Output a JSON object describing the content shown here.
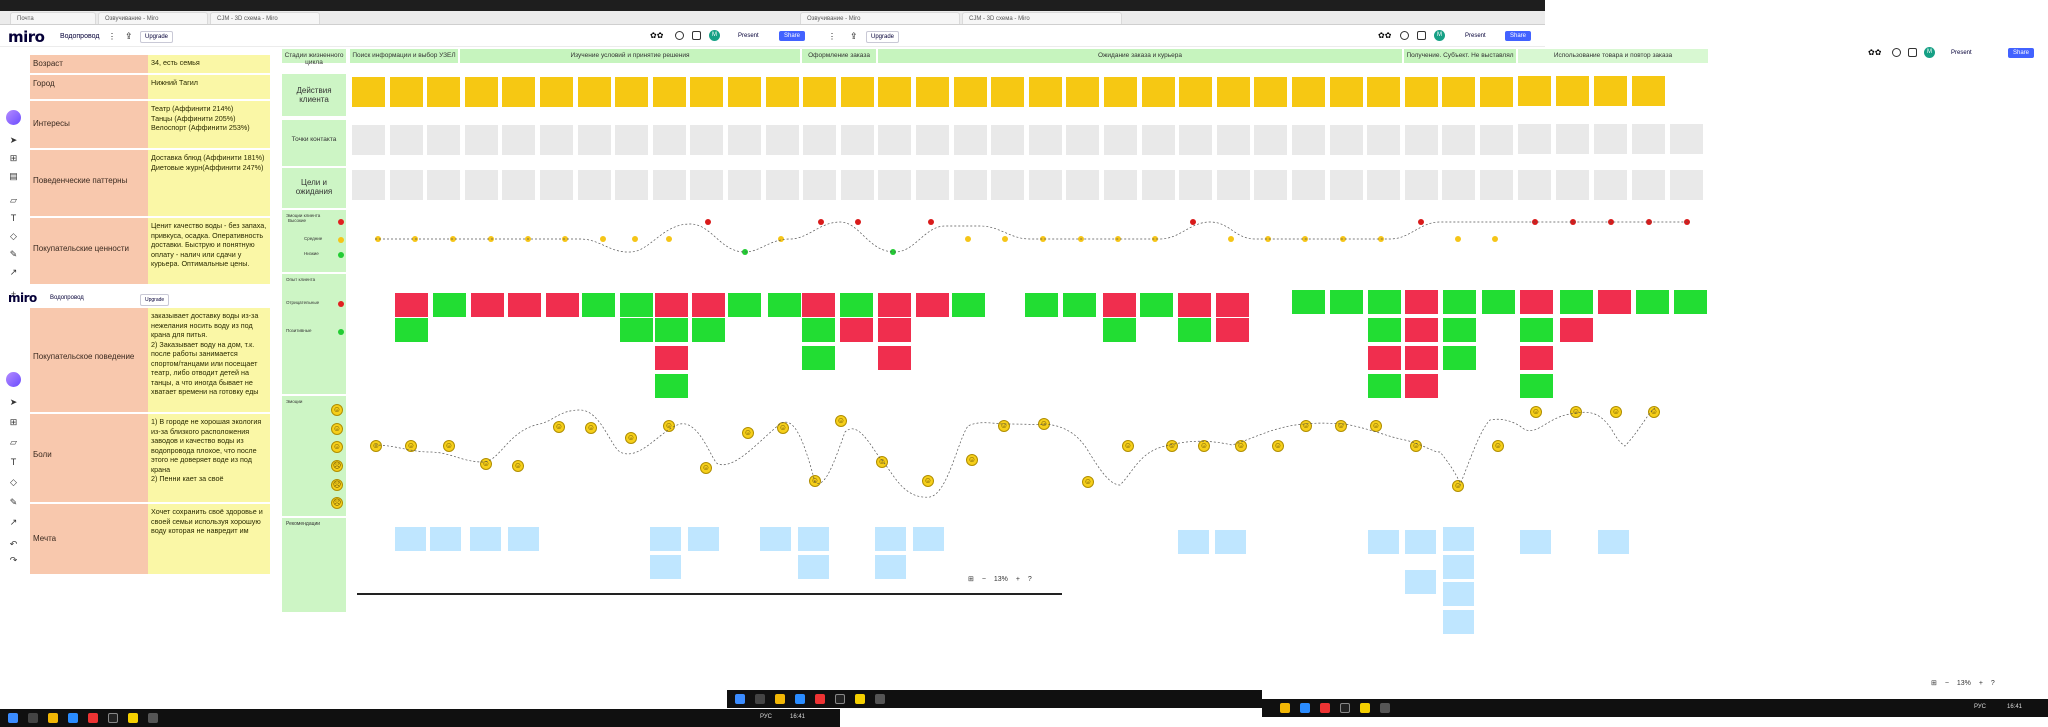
{
  "browser_tabs": [
    {
      "label": "Почта"
    },
    {
      "label": "Озвучивание - Miro"
    },
    {
      "label": "CJM - 3D схема - Miro"
    }
  ],
  "app": {
    "logo": "miro",
    "board_name": "Водопровод",
    "upgrade_label": "Upgrade",
    "present_label": "Present",
    "share_label": "Share",
    "avatar_initial": "M"
  },
  "persona": [
    {
      "label": "Возраст",
      "value": "34, есть семья"
    },
    {
      "label": "Город",
      "value": "Нижний Тагил"
    },
    {
      "label": "Интересы",
      "value": "Театр (Аффинити 214%)\nТанцы (Аффинити 205%)\nВелоспорт (Аффинити 253%)"
    },
    {
      "label": "Поведенческие паттерны",
      "value": "Доставка блюд (Аффинити 181%)\nДиетовые журн(Аффинити 247%)"
    },
    {
      "label": "Покупательские ценности",
      "value": "Ценит качество воды - без запаха, привкуса, осадка. Оперативность доставки. Быструю и понятную оплату - налич или сдачи у курьера. Оптимальные цены."
    },
    {
      "label": "Покупательское поведение",
      "value": "заказывает доставку воды из-за нежелания носить воду из под крана для питья.\n2) Заказывает воду на дом, т.к. после работы занимается спортом/танцами или посещает театр, либо отводит детей на танцы, а что иногда бывает не хватает времени на готовку еды"
    },
    {
      "label": "Боли",
      "value": "1) В городе не хорошая экология из-за близкого расположения заводов и качество воды из водопровода плохое, что после этого не доверяет воде из под крана\n2) Пенни кает за своё"
    },
    {
      "label": "Мечта",
      "value": "Хочет сохранить своё здоровье и своей семьи используя хорошую воду которая не навредит им"
    }
  ],
  "board": {
    "corner_label": "Стадии жизненного цикла",
    "row_labels": [
      "Действия клиента",
      "Точки контакта",
      "Цели и ожидания",
      "Эмоции клиента",
      "Опыт клиента",
      "Эмоции",
      "Рекомендации"
    ],
    "emotion_legend": [
      "Высокие",
      "Средние",
      "Низкие"
    ],
    "experience_legend": [
      "Отрицательные",
      "Позитивные"
    ],
    "stages": [
      {
        "label": "Поиск информации и выбор УЗЕЛ"
      },
      {
        "label": "Изучение условий и принятие решения"
      },
      {
        "label": "Оформление заказа"
      },
      {
        "label": "Ожидание заказа и курьера"
      },
      {
        "label": "Получение. Субъект. Не выставлял"
      },
      {
        "label": "Использование товара и повтор заказа"
      }
    ]
  },
  "zoom": {
    "level": "13%"
  },
  "taskbar": {
    "lang": "РУС",
    "time": "16:41"
  },
  "colors": {
    "persona_label": "#f8c8ad",
    "persona_value": "#faf7a6",
    "stage_green": "#c6f4be",
    "sticky_yellow": "#f6c813",
    "sticky_red": "#f02e4e",
    "sticky_green": "#22dd33",
    "sticky_blue": "#bfe6ff",
    "accent": "#4262ff"
  }
}
